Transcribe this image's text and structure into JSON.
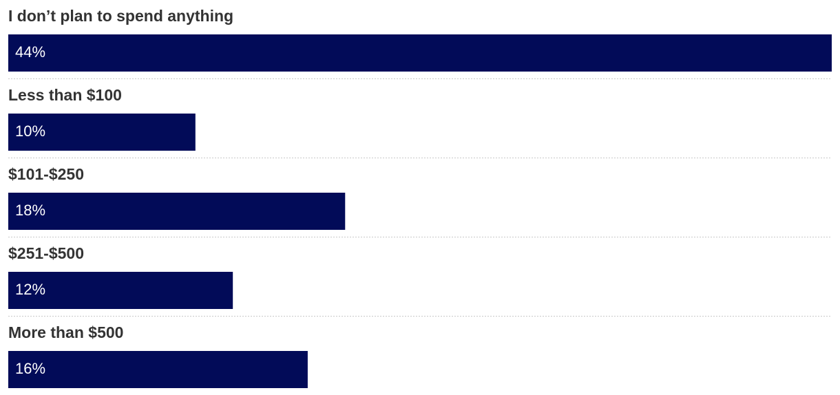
{
  "chart_data": {
    "type": "bar",
    "orientation": "horizontal",
    "categories": [
      "I don’t plan to spend anything",
      "Less than $100",
      "$101-$250",
      "$251-$500",
      "More than $500"
    ],
    "values": [
      44,
      10,
      18,
      12,
      16
    ],
    "value_labels": [
      "44%",
      "10%",
      "18%",
      "12%",
      "16%"
    ],
    "color": "#020b58"
  }
}
